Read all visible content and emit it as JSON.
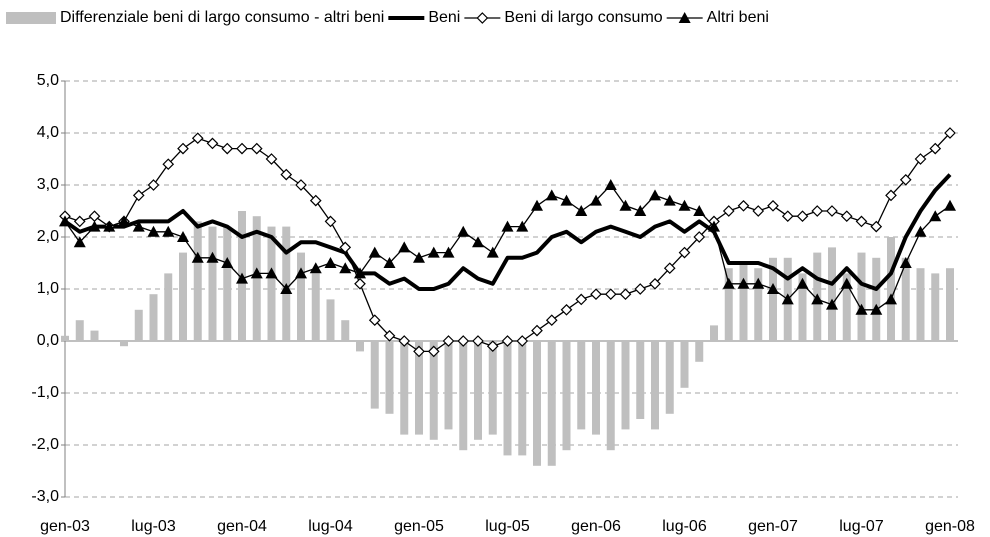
{
  "chart_data": {
    "type": "combo",
    "categories": [
      "gen-03",
      null,
      null,
      null,
      null,
      null,
      "lug-03",
      null,
      null,
      null,
      null,
      null,
      "gen-04",
      null,
      null,
      null,
      null,
      null,
      "lug-04",
      null,
      null,
      null,
      null,
      null,
      "gen-05",
      null,
      null,
      null,
      null,
      null,
      "lug-05",
      null,
      null,
      null,
      null,
      null,
      "gen-06",
      null,
      null,
      null,
      null,
      null,
      "lug-06",
      null,
      null,
      null,
      null,
      null,
      "gen-07",
      null,
      null,
      null,
      null,
      null,
      "lug-07",
      null,
      null,
      null,
      null,
      null,
      "gen-08"
    ],
    "series": [
      {
        "name": "Differenziale beni di largo consumo - altri beni",
        "kind": "bar",
        "color": "#bfbfbf",
        "values": [
          0.1,
          0.4,
          0.2,
          0.0,
          -0.1,
          0.6,
          0.9,
          1.3,
          1.7,
          2.3,
          2.2,
          2.2,
          2.5,
          2.4,
          2.2,
          2.2,
          1.7,
          1.3,
          0.8,
          0.4,
          -0.2,
          -1.3,
          -1.4,
          -1.8,
          -1.8,
          -1.9,
          -1.7,
          -2.1,
          -1.9,
          -1.8,
          -2.2,
          -2.2,
          -2.4,
          -2.4,
          -2.1,
          -1.7,
          -1.8,
          -2.1,
          -1.7,
          -1.5,
          -1.7,
          -1.4,
          -0.9,
          -0.4,
          0.3,
          1.4,
          1.5,
          1.4,
          1.6,
          1.6,
          1.3,
          1.7,
          1.8,
          1.3,
          1.7,
          1.6,
          2.0,
          1.6,
          1.4,
          1.3,
          1.4
        ]
      },
      {
        "name": "Beni",
        "kind": "line",
        "marker": "none",
        "width": 4,
        "color": "#000000",
        "values": [
          2.3,
          2.1,
          2.2,
          2.2,
          2.2,
          2.3,
          2.3,
          2.3,
          2.5,
          2.2,
          2.3,
          2.2,
          2.0,
          2.1,
          2.0,
          1.7,
          1.9,
          1.9,
          1.8,
          1.7,
          1.3,
          1.3,
          1.1,
          1.2,
          1.0,
          1.0,
          1.1,
          1.4,
          1.2,
          1.1,
          1.6,
          1.6,
          1.7,
          2.0,
          2.1,
          1.9,
          2.1,
          2.2,
          2.1,
          2.0,
          2.2,
          2.3,
          2.1,
          2.3,
          2.1,
          1.5,
          1.5,
          1.5,
          1.4,
          1.2,
          1.4,
          1.2,
          1.1,
          1.4,
          1.1,
          1.0,
          1.3,
          2.0,
          2.5,
          2.9,
          3.2
        ]
      },
      {
        "name": "Beni di largo consumo",
        "kind": "line",
        "marker": "diamond",
        "width": 1.3,
        "color": "#000000",
        "values": [
          2.4,
          2.3,
          2.4,
          2.2,
          2.3,
          2.8,
          3.0,
          3.4,
          3.7,
          3.9,
          3.8,
          3.7,
          3.7,
          3.7,
          3.5,
          3.2,
          3.0,
          2.7,
          2.3,
          1.8,
          1.1,
          0.4,
          0.1,
          0.0,
          -0.2,
          -0.2,
          0.0,
          0.0,
          0.0,
          -0.1,
          0.0,
          0.0,
          0.2,
          0.4,
          0.6,
          0.8,
          0.9,
          0.9,
          0.9,
          1.0,
          1.1,
          1.4,
          1.7,
          2.0,
          2.3,
          2.5,
          2.6,
          2.5,
          2.6,
          2.4,
          2.4,
          2.5,
          2.5,
          2.4,
          2.3,
          2.2,
          2.8,
          3.1,
          3.5,
          3.7,
          4.0
        ]
      },
      {
        "name": "Altri beni",
        "kind": "line",
        "marker": "triangle",
        "width": 1.3,
        "color": "#000000",
        "values": [
          2.3,
          1.9,
          2.2,
          2.2,
          2.3,
          2.2,
          2.1,
          2.1,
          2.0,
          1.6,
          1.6,
          1.5,
          1.2,
          1.3,
          1.3,
          1.0,
          1.3,
          1.4,
          1.5,
          1.4,
          1.3,
          1.7,
          1.5,
          1.8,
          1.6,
          1.7,
          1.7,
          2.1,
          1.9,
          1.7,
          2.2,
          2.2,
          2.6,
          2.8,
          2.7,
          2.5,
          2.7,
          3.0,
          2.6,
          2.5,
          2.8,
          2.7,
          2.6,
          2.5,
          2.2,
          1.1,
          1.1,
          1.1,
          1.0,
          0.8,
          1.1,
          0.8,
          0.7,
          1.1,
          0.6,
          0.6,
          0.8,
          1.5,
          2.1,
          2.4,
          2.6
        ]
      }
    ],
    "ylim": [
      -3,
      5
    ],
    "yticks": [
      {
        "value": -3,
        "label": "-3,0"
      },
      {
        "value": -2,
        "label": "-2,0"
      },
      {
        "value": -1,
        "label": "-1,0"
      },
      {
        "value": 0,
        "label": "0,0"
      },
      {
        "value": 1,
        "label": "1,0"
      },
      {
        "value": 2,
        "label": "2,0"
      },
      {
        "value": 3,
        "label": "3,0"
      },
      {
        "value": 4,
        "label": "4,0"
      },
      {
        "value": 5,
        "label": "5,0"
      }
    ],
    "grid": true,
    "legend": "top"
  }
}
